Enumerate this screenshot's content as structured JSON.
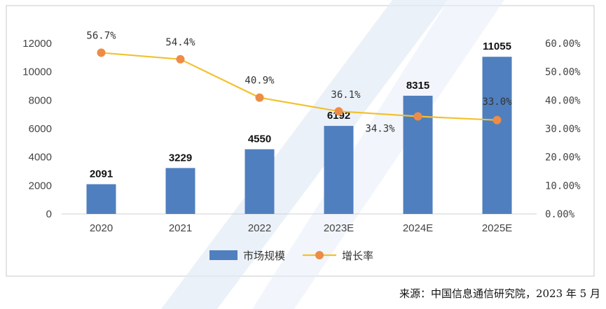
{
  "chart_data": {
    "type": "bar",
    "categories": [
      "2020",
      "2021",
      "2022",
      "2023E",
      "2024E",
      "2025E"
    ],
    "series": [
      {
        "name": "市场规模",
        "type": "bar",
        "axis": "left",
        "values": [
          2091,
          3229,
          4550,
          6192,
          8315,
          11055
        ],
        "labels": [
          "2091",
          "3229",
          "4550",
          "6192",
          "8315",
          "11055"
        ]
      },
      {
        "name": "增长率",
        "type": "line",
        "axis": "right",
        "values": [
          56.7,
          54.4,
          40.9,
          36.1,
          34.3,
          33.0
        ],
        "labels": [
          "56.7%",
          "54.4%",
          "40.9%",
          "36.1%",
          "34.3%",
          "33.0%"
        ]
      }
    ],
    "y_left": {
      "ylim": [
        0,
        12000
      ],
      "ticks": [
        0,
        2000,
        4000,
        6000,
        8000,
        10000,
        12000
      ],
      "tick_labels": [
        "0",
        "2000",
        "4000",
        "6000",
        "8000",
        "10000",
        "12000"
      ]
    },
    "y_right": {
      "ylim": [
        0,
        60
      ],
      "ticks": [
        0,
        10,
        20,
        30,
        40,
        50,
        60
      ],
      "tick_labels": [
        "0.00%",
        "10.00%",
        "20.00%",
        "30.00%",
        "40.00%",
        "50.00%",
        "60.00%"
      ]
    },
    "legend": {
      "placement": "bottom-center",
      "items": [
        "市场规模",
        "增长率"
      ]
    },
    "grid": false,
    "colors": {
      "bar": "#4f7fbf",
      "line": "#f2c12e",
      "marker": "#ed8c46"
    }
  },
  "source_note": "来源：中国信息通信研究院，2023 年 5 月"
}
